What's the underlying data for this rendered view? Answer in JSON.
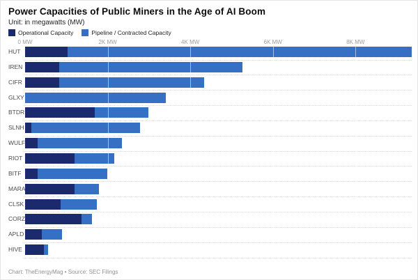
{
  "header": {
    "title": "Power Capacities of Public Miners in the Age of AI Boom",
    "subtitle": "Unit: in megawatts (MW)"
  },
  "legend": [
    {
      "label": "Operational Capacity",
      "color": "#1a2a6d"
    },
    {
      "label": "Pipeline / Contracted Capacity",
      "color": "#3570c5"
    }
  ],
  "footer": "Chart: TheEnergyMag • Source: SEC Filings",
  "colors": {
    "operational": "#1a2a6d",
    "pipeline": "#3570c5",
    "tick_text": "#9b9b9b",
    "row_label": "#4c4c4c",
    "separator": "#d9d9d9",
    "background": "#ffffff"
  },
  "chart_data": {
    "type": "bar",
    "orientation": "horizontal",
    "stacked": true,
    "title": "Power Capacities of Public Miners in the Age of AI Boom",
    "subtitle": "Unit: in megawatts (MW)",
    "unit": "MW",
    "categories": [
      "HUT",
      "IREN",
      "CIFR",
      "GLXY",
      "BTDR",
      "SLNH",
      "WULF",
      "RIOT",
      "BITF",
      "MARA",
      "CLSK",
      "CORZ",
      "APLD",
      "HIVE"
    ],
    "series": [
      {
        "name": "Operational Capacity",
        "color": "#1a2a6d",
        "values": [
          1030,
          820,
          820,
          0,
          1680,
          155,
          300,
          1200,
          300,
          1200,
          860,
          1370,
          410,
          460
        ]
      },
      {
        "name": "Pipeline / Contracted Capacity",
        "color": "#3570c5",
        "values": [
          8330,
          4440,
          3520,
          3400,
          1310,
          2620,
          2040,
          960,
          1690,
          580,
          870,
          250,
          490,
          100
        ]
      }
    ],
    "totals": [
      9360,
      5260,
      4340,
      3400,
      2990,
      2775,
      2340,
      2160,
      1990,
      1780,
      1730,
      1620,
      900,
      560
    ],
    "x_ticks": [
      "0 MW",
      "2K MW",
      "4K MW",
      "6K MW",
      "8K MW"
    ],
    "x_tick_values": [
      0,
      2000,
      4000,
      6000,
      8000
    ],
    "xlim": [
      0,
      9360
    ],
    "legend_position": "top",
    "gridlines": "vertical, white over bars; dotted row separators"
  }
}
